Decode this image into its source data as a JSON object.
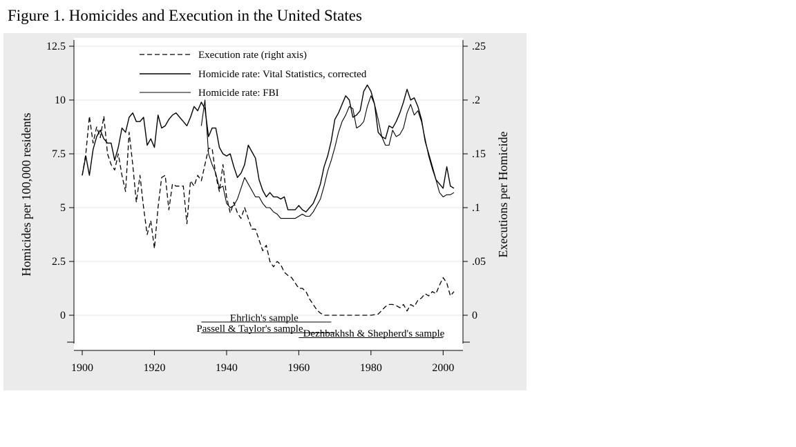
{
  "figure_title": "Figure 1. Homicides and Execution in the United States",
  "chart_data": {
    "type": "line",
    "title": "Figure 1. Homicides and Execution in the United States",
    "xlabel": "",
    "ylabel": "Homicides per 100,000 residents",
    "y2label": "Executions per Homicide",
    "xlim": [
      1900,
      2004
    ],
    "ylim": [
      -1.25,
      12.5
    ],
    "y2lim": [
      -0.025,
      0.25
    ],
    "grid": true,
    "legend_position": "top-center",
    "x_ticks": [
      1900,
      1920,
      1940,
      1960,
      1980,
      2000
    ],
    "x_tick_labels": [
      "1900",
      "1920",
      "1940",
      "1960",
      "1980",
      "2000"
    ],
    "y_ticks": [
      0,
      2.5,
      5,
      7.5,
      10,
      12.5
    ],
    "y_tick_labels": [
      "0",
      "2.5",
      "5",
      "7.5",
      "10",
      "12.5"
    ],
    "y2_ticks": [
      0,
      0.05,
      0.1,
      0.15,
      0.2,
      0.25
    ],
    "y2_tick_labels": [
      "0",
      ".05",
      ".1",
      ".15",
      ".2",
      ".25"
    ],
    "series": [
      {
        "name": "Execution rate (right axis)",
        "axis": "right",
        "style": "dashed",
        "x": [
          1900,
          1901,
          1902,
          1903,
          1904,
          1905,
          1906,
          1907,
          1908,
          1909,
          1910,
          1911,
          1912,
          1913,
          1914,
          1915,
          1916,
          1917,
          1918,
          1919,
          1920,
          1921,
          1922,
          1923,
          1924,
          1925,
          1926,
          1927,
          1928,
          1929,
          1930,
          1931,
          1932,
          1933,
          1934,
          1935,
          1936,
          1937,
          1938,
          1939,
          1940,
          1941,
          1942,
          1943,
          1944,
          1945,
          1946,
          1947,
          1948,
          1949,
          1950,
          1951,
          1952,
          1953,
          1954,
          1955,
          1956,
          1957,
          1958,
          1959,
          1960,
          1961,
          1962,
          1963,
          1964,
          1965,
          1966,
          1967,
          1968,
          1970,
          1975,
          1980,
          1982,
          1984,
          1985,
          1986,
          1987,
          1988,
          1989,
          1990,
          1991,
          1992,
          1993,
          1994,
          1995,
          1996,
          1997,
          1998,
          1999,
          2000,
          2001,
          2002,
          2003
        ],
        "values": [
          0.13,
          0.15,
          0.185,
          0.16,
          0.175,
          0.165,
          0.185,
          0.15,
          0.14,
          0.135,
          0.15,
          0.13,
          0.115,
          0.17,
          0.14,
          0.105,
          0.13,
          0.1,
          0.075,
          0.088,
          0.062,
          0.1,
          0.128,
          0.13,
          0.098,
          0.122,
          0.12,
          0.12,
          0.12,
          0.085,
          0.125,
          0.12,
          0.13,
          0.125,
          0.14,
          0.155,
          0.155,
          0.13,
          0.115,
          0.14,
          0.11,
          0.095,
          0.105,
          0.095,
          0.09,
          0.1,
          0.09,
          0.08,
          0.08,
          0.07,
          0.06,
          0.065,
          0.05,
          0.045,
          0.05,
          0.047,
          0.04,
          0.037,
          0.035,
          0.03,
          0.025,
          0.025,
          0.022,
          0.015,
          0.01,
          0.005,
          0.002,
          0,
          0,
          0,
          0,
          0,
          0.001,
          0.008,
          0.01,
          0.01,
          0.009,
          0.007,
          0.01,
          0.004,
          0.01,
          0.008,
          0.014,
          0.016,
          0.02,
          0.018,
          0.022,
          0.02,
          0.028,
          0.035,
          0.03,
          0.018,
          0.022
        ]
      },
      {
        "name": "Homicide rate: Vital Statistics, corrected",
        "axis": "left",
        "style": "solid",
        "x": [
          1900,
          1901,
          1902,
          1903,
          1904,
          1905,
          1906,
          1907,
          1908,
          1909,
          1910,
          1911,
          1912,
          1913,
          1914,
          1915,
          1916,
          1917,
          1918,
          1919,
          1920,
          1921,
          1922,
          1923,
          1924,
          1925,
          1926,
          1927,
          1928,
          1929,
          1930,
          1931,
          1932,
          1933,
          1934,
          1935,
          1936,
          1937,
          1938,
          1939,
          1940,
          1941,
          1942,
          1943,
          1944,
          1945,
          1946,
          1947,
          1948,
          1949,
          1950,
          1951,
          1952,
          1953,
          1954,
          1955,
          1956,
          1957,
          1958,
          1959,
          1960,
          1961,
          1962,
          1963,
          1964,
          1965,
          1966,
          1967,
          1968,
          1969,
          1970,
          1971,
          1972,
          1973,
          1974,
          1975,
          1976,
          1977,
          1978,
          1979,
          1980,
          1981,
          1982,
          1983,
          1984,
          1985,
          1986,
          1987,
          1988,
          1989,
          1990,
          1991,
          1992,
          1993,
          1994,
          1995,
          1996,
          1997,
          1998,
          1999,
          2000,
          2001,
          2002,
          2003
        ],
        "values": [
          6.5,
          7.4,
          6.5,
          7.7,
          8.3,
          8.6,
          8.2,
          8.0,
          8.0,
          7.2,
          7.8,
          8.7,
          8.5,
          9.2,
          9.4,
          9.0,
          9.0,
          9.2,
          7.9,
          8.2,
          7.8,
          9.3,
          8.7,
          8.8,
          9.1,
          9.3,
          9.4,
          9.2,
          9.0,
          8.8,
          9.2,
          9.7,
          9.5,
          9.9,
          9.6,
          8.3,
          8.7,
          8.7,
          7.8,
          7.5,
          7.4,
          7.5,
          6.9,
          6.4,
          6.6,
          7.0,
          7.9,
          7.6,
          7.3,
          6.3,
          5.8,
          5.5,
          5.7,
          5.5,
          5.5,
          5.4,
          5.5,
          4.9,
          4.9,
          4.9,
          5.1,
          4.9,
          4.8,
          5.0,
          5.2,
          5.6,
          6.1,
          6.9,
          7.4,
          8.1,
          9.1,
          9.4,
          9.8,
          10.2,
          10.0,
          9.2,
          9.3,
          9.5,
          10.4,
          10.7,
          10.4,
          9.8,
          8.5,
          8.3,
          8.2,
          8.8,
          8.7,
          9.0,
          9.4,
          9.9,
          10.5,
          10.0,
          10.1,
          9.7,
          9.1,
          8.1,
          7.5,
          6.9,
          6.3,
          6.1,
          5.9,
          6.9,
          6.0,
          5.9
        ]
      },
      {
        "name": "Homicide rate: FBI",
        "axis": "left",
        "style": "solid-thin",
        "x": [
          1933,
          1934,
          1935,
          1936,
          1937,
          1938,
          1939,
          1940,
          1941,
          1942,
          1943,
          1944,
          1945,
          1946,
          1947,
          1948,
          1949,
          1950,
          1951,
          1952,
          1953,
          1954,
          1955,
          1956,
          1957,
          1958,
          1959,
          1960,
          1961,
          1962,
          1963,
          1964,
          1965,
          1966,
          1967,
          1968,
          1969,
          1970,
          1971,
          1972,
          1973,
          1974,
          1975,
          1976,
          1977,
          1978,
          1979,
          1980,
          1981,
          1982,
          1983,
          1984,
          1985,
          1986,
          1987,
          1988,
          1989,
          1990,
          1991,
          1992,
          1993,
          1994,
          1995,
          1996,
          1997,
          1998,
          1999,
          2000,
          2001,
          2002,
          2003
        ],
        "values": [
          8.8,
          10.0,
          7.5,
          7.0,
          6.6,
          5.9,
          6.0,
          5.2,
          5.0,
          5.1,
          5.4,
          5.9,
          6.4,
          6.1,
          5.8,
          5.5,
          5.5,
          5.2,
          5.0,
          5.0,
          4.8,
          4.7,
          4.5,
          4.5,
          4.5,
          4.5,
          4.5,
          4.6,
          4.7,
          4.6,
          4.6,
          4.8,
          5.1,
          5.4,
          6.0,
          6.7,
          7.2,
          7.8,
          8.5,
          9.0,
          9.3,
          9.7,
          9.6,
          8.7,
          8.8,
          9.0,
          9.7,
          10.2,
          9.8,
          9.1,
          8.3,
          7.9,
          7.9,
          8.6,
          8.3,
          8.4,
          8.7,
          9.4,
          9.8,
          9.3,
          9.5,
          9.0,
          8.2,
          7.4,
          6.8,
          6.3,
          5.7,
          5.5,
          5.6,
          5.6,
          5.7
        ]
      }
    ],
    "sample_lines": [
      {
        "label": "Ehrlich's sample",
        "start": 1933,
        "end": 1969,
        "y": -0.3
      },
      {
        "label": "Passell & Taylor's sample",
        "start": 1933,
        "end": 1970,
        "y": -0.8
      },
      {
        "label": "Dezhbakhsh & Shepherd's sample",
        "start": 1960,
        "end": 2000,
        "y": -1.25
      }
    ]
  }
}
